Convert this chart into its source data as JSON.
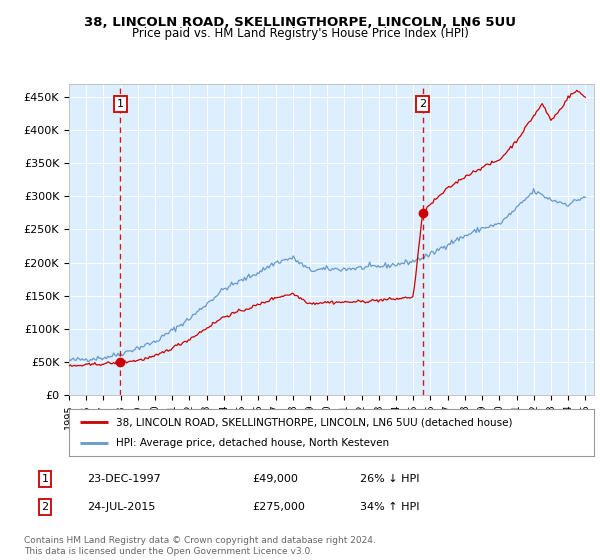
{
  "title": "38, LINCOLN ROAD, SKELLINGTHORPE, LINCOLN, LN6 5UU",
  "subtitle": "Price paid vs. HM Land Registry's House Price Index (HPI)",
  "ylabel_ticks": [
    0,
    50000,
    100000,
    150000,
    200000,
    250000,
    300000,
    350000,
    400000,
    450000
  ],
  "ylabel_labels": [
    "£0",
    "£50K",
    "£100K",
    "£150K",
    "£200K",
    "£250K",
    "£300K",
    "£350K",
    "£400K",
    "£450K"
  ],
  "ylim": [
    0,
    470000
  ],
  "xlim_start": 1995.0,
  "xlim_end": 2025.5,
  "background_color": "#ddeeff",
  "fig_bg_color": "#ffffff",
  "red_line_color": "#cc0000",
  "blue_line_color": "#6699cc",
  "dashed_line_color": "#cc0000",
  "marker_color": "#cc0000",
  "sale1_x": 1997.97,
  "sale1_y": 49000,
  "sale1_label": "23-DEC-1997",
  "sale1_price": "£49,000",
  "sale1_hpi": "26% ↓ HPI",
  "sale2_x": 2015.55,
  "sale2_y": 275000,
  "sale2_label": "24-JUL-2015",
  "sale2_price": "£275,000",
  "sale2_hpi": "34% ↑ HPI",
  "legend_line1": "38, LINCOLN ROAD, SKELLINGTHORPE, LINCOLN, LN6 5UU (detached house)",
  "legend_line2": "HPI: Average price, detached house, North Kesteven",
  "footer": "Contains HM Land Registry data © Crown copyright and database right 2024.\nThis data is licensed under the Open Government Licence v3.0.",
  "grid_color": "#ffffff",
  "xticks": [
    1995,
    1996,
    1997,
    1998,
    1999,
    2000,
    2001,
    2002,
    2003,
    2004,
    2005,
    2006,
    2007,
    2008,
    2009,
    2010,
    2011,
    2012,
    2013,
    2014,
    2015,
    2016,
    2017,
    2018,
    2019,
    2020,
    2021,
    2022,
    2023,
    2024,
    2025
  ]
}
